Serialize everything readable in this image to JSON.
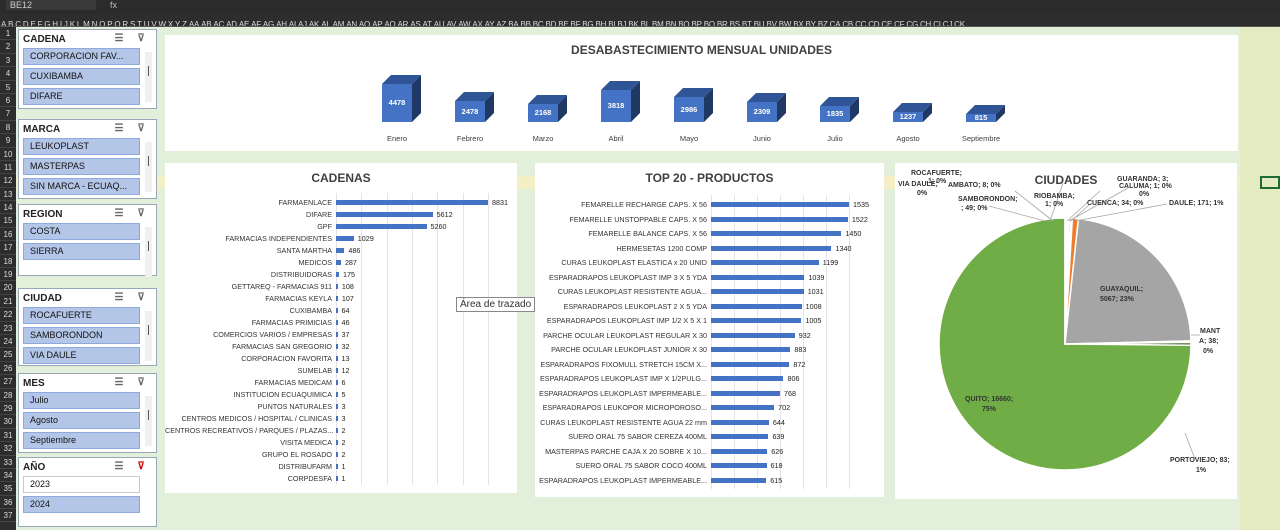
{
  "excel": {
    "name_box": "BE12",
    "fx_label": "fx",
    "columns": [
      "A",
      "B",
      "C",
      "D",
      "E",
      "F",
      "G",
      "H",
      "I",
      "J",
      "K",
      "L",
      "M",
      "N",
      "O",
      "P",
      "Q",
      "R",
      "S",
      "T",
      "U",
      "V",
      "W",
      "X",
      "Y",
      "Z",
      "AA",
      "AB",
      "AC",
      "AD",
      "AE",
      "AF",
      "AG",
      "AH",
      "AI",
      "AJ",
      "AK",
      "AL",
      "AM",
      "AN",
      "AO",
      "AP",
      "AQ",
      "AR",
      "AS",
      "AT",
      "AU",
      "AV",
      "AW",
      "AX",
      "AY",
      "AZ",
      "BA",
      "BB",
      "BC",
      "BD",
      "BE",
      "BF",
      "BG",
      "BH",
      "BI",
      "BJ",
      "BK",
      "BL",
      "BM",
      "BN",
      "BO",
      "BP",
      "BQ",
      "BR",
      "BS",
      "BT",
      "BU",
      "BV",
      "BW",
      "BX",
      "BY",
      "BZ",
      "CA",
      "CB",
      "CC",
      "CD",
      "CE",
      "CF",
      "CG",
      "CH",
      "CI",
      "CJ",
      "CK"
    ],
    "rows": [
      "1",
      "2",
      "3",
      "4",
      "5",
      "6",
      "7",
      "8",
      "9",
      "10",
      "11",
      "12",
      "13",
      "14",
      "15",
      "16",
      "17",
      "18",
      "19",
      "20",
      "21",
      "22",
      "23",
      "24",
      "25",
      "26",
      "27",
      "28",
      "29",
      "30",
      "31",
      "32",
      "33",
      "34",
      "35",
      "36",
      "37"
    ]
  },
  "slicers": [
    {
      "title": "CADENA",
      "items": [
        "CORPORACION FAV...",
        "CUXIBAMBA",
        "DIFARE"
      ],
      "plain": false,
      "scroll": true
    },
    {
      "title": "MARCA",
      "items": [
        "LEUKOPLAST",
        "MASTERPAS",
        "SIN MARCA - ECUAQ..."
      ],
      "plain": false,
      "scroll": true
    },
    {
      "title": "REGION",
      "items": [
        "COSTA",
        "SIERRA"
      ],
      "plain": false,
      "scroll": true
    },
    {
      "title": "CIUDAD",
      "items": [
        "ROCAFUERTE",
        "SAMBORONDON",
        "VIA DAULE"
      ],
      "plain": false,
      "scroll": true
    },
    {
      "title": "MES",
      "items": [
        "Julio",
        "Agosto",
        "Septiembre"
      ],
      "plain": false,
      "scroll": true
    },
    {
      "title": "AÑO",
      "items": [
        "2023",
        "2024"
      ],
      "plain": true,
      "scroll": false
    }
  ],
  "monthly_chart": {
    "title": "DESABASTECIMIENTO MENSUAL UNIDADES",
    "chart_data": {
      "type": "bar",
      "categories": [
        "Enero",
        "Febrero",
        "Marzo",
        "Abril",
        "Mayo",
        "Junio",
        "Julio",
        "Agosto",
        "Septiembre"
      ],
      "values": [
        4478,
        2478,
        2168,
        3818,
        2986,
        2309,
        1835,
        1237,
        815
      ]
    }
  },
  "cadenas_chart": {
    "title": "CADENAS",
    "chart_data": {
      "type": "bar",
      "categories": [
        "FARMAENLACE",
        "DIFARE",
        "GPF",
        "FARMACIAS INDEPENDIENTES",
        "SANTA MARTHA",
        "MEDICOS",
        "DISTRIBUIDORAS",
        "GETTAREQ - FARMACIAS 911",
        "FARMACIAS KEYLA",
        "CUXIBAMBA",
        "FARMACIAS PRIMICIAS",
        "COMERCIOS VARIOS / EMPRESAS",
        "FARMACIAS SAN GREGORIO",
        "CORPORACION FAVORITA",
        "SUMELAB",
        "FARMACIAS MEDICAM",
        "INSTITUCION ECUAQUIMICA",
        "PUNTOS NATURALES",
        "CENTROS MEDICOS / HOSPITAL / CLINICAS",
        "CENTROS RECREATIVOS / PARQUES / PLAZAS...",
        "VISITA MEDICA",
        "GRUPO EL ROSADO",
        "DISTRIBUFARM",
        "CORPDESFA"
      ],
      "values": [
        8831,
        5612,
        5260,
        1029,
        486,
        287,
        175,
        108,
        107,
        64,
        46,
        37,
        32,
        13,
        12,
        6,
        5,
        3,
        3,
        2,
        2,
        2,
        1,
        1
      ]
    }
  },
  "productos_chart": {
    "title": "TOP 20 - PRODUCTOS",
    "chart_data": {
      "type": "bar",
      "categories": [
        "FEMARELLE RECHARGE CAPS. X 56",
        "FEMARELLE UNSTOPPABLE CAPS. X 56",
        "FEMARELLE BALANCE CAPS. X 56",
        "HERMESETAS 1200 COMP",
        "CURAS LEUKOPLAST ELASTICA x 20 UNID",
        "ESPARADRAPOS LEUKOPLAST IMP 3 X 5 YDA",
        "CURAS LEUKOPLAST RESISTENTE AGUA...",
        "ESPARADRAPOS LEUKOPLAST 2 X 5 YDA",
        "ESPARADRAPOS LEUKOPLAST IMP 1/2 X 5 X 1",
        "PARCHE OCULAR LEUKOPLAST REGULAR X 30",
        "PARCHE OCULAR LEUKOPLAST JUNIOR X 30",
        "ESPARADRAPOS FIXOMULL STRETCH 15CM X...",
        "ESPARADRAPOS LEUKOPLAST IMP X 1/2PULG...",
        "ESPARADRAPOS LEUKOPLAST IMPERMEABLE...",
        "ESPARADRAPOS LEUKOPOR MICROPOROSO...",
        "CURAS LEUKOPLAST RESISTENTE AGUA 22 mm",
        "SUERO ORAL 75 SABOR CEREZA 400ML",
        "MASTERPAS PARCHE CAJA X 20 SOBRE X 10...",
        "SUERO ORAL 75 SABOR COCO 400ML",
        "ESPARADRAPOS LEUKOPLAST IMPERMEABLE..."
      ],
      "values": [
        1535,
        1522,
        1450,
        1340,
        1199,
        1039,
        1031,
        1008,
        1005,
        932,
        883,
        872,
        806,
        768,
        702,
        644,
        639,
        626,
        618,
        615
      ]
    }
  },
  "ciudades_chart": {
    "title": "CIUDADES",
    "chart_data": {
      "type": "pie",
      "slices": [
        {
          "name": "QUITO",
          "value": 16660,
          "pct": "75%",
          "color": "#70ad47"
        },
        {
          "name": "ROCAFUERTE",
          "value": 1,
          "pct": "0%",
          "color": "#4472c4"
        },
        {
          "name": "RIOBAMBA",
          "value": 1,
          "pct": "0%",
          "color": "#5b9bd5"
        },
        {
          "name": "CALUMA",
          "value": 1,
          "pct": "0%",
          "color": "#a5a5a5"
        },
        {
          "name": "GUARANDA",
          "value": 3,
          "pct": "0%",
          "color": "#ffc000"
        },
        {
          "name": "AMBATO",
          "value": 8,
          "pct": "0%",
          "color": "#264478"
        },
        {
          "name": "SAMBORONDON",
          "value": 49,
          "pct": "0%",
          "color": "#9e480e"
        },
        {
          "name": "CUENCA",
          "value": 34,
          "pct": "0%",
          "color": "#636363"
        },
        {
          "name": "DAULE",
          "value": 171,
          "pct": "1%",
          "color": "#ed7d31"
        },
        {
          "name": "GUAYAQUIL",
          "value": 5067,
          "pct": "23%",
          "color": "#a5a5a5"
        },
        {
          "name": "MANTA",
          "value": 38,
          "pct": "0%",
          "color": "#997300"
        },
        {
          "name": "PORTOVIEJO",
          "value": 83,
          "pct": "1%",
          "color": "#43682b"
        }
      ],
      "labels": {
        "rocafuerte": "ROCAFUERTE;",
        "rocafuerte2": "1; 0%",
        "via_daule": "VIA DAULE;",
        "via_daule2": "0%",
        "ambato": "AMBATO; 8; 0%",
        "samborondon": "SAMBORONDON;",
        "samborondon2": "; 49; 0%",
        "riobamba": "RIOBAMBA;",
        "riobamba2": "1; 0%",
        "guaranda": "GUARANDA; 3;",
        "caluma": "CALUMA; 1; 0%",
        "caluma2": "0%",
        "cuenca": "CUENCA; 34; 0%",
        "daule": "DAULE; 171; 1%",
        "guayaquil": "GUAYAQUIL;",
        "guayaquil2": "5067; 23%",
        "manta": "MANT",
        "manta2": "A; 38;",
        "manta3": "0%",
        "quito": "QUITO; 16660;",
        "quito2": "75%",
        "portoviejo": "PORTOVIEJO; 83;",
        "portoviejo2": "1%"
      }
    }
  },
  "tooltip": "Área de trazado"
}
